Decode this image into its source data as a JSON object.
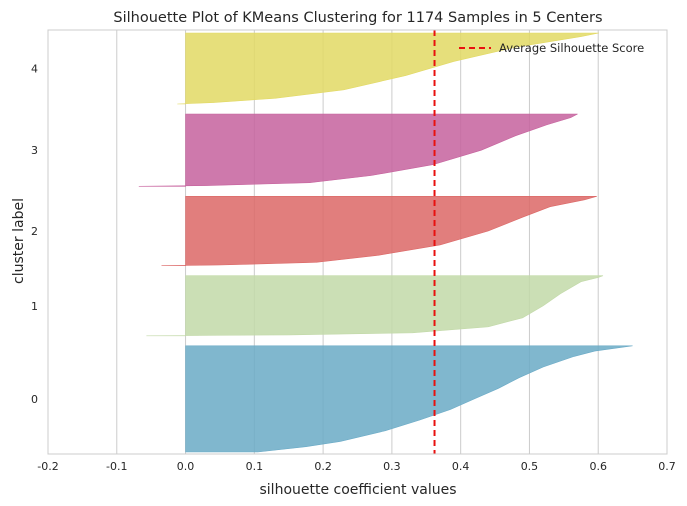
{
  "chart_data": {
    "type": "area",
    "title": "Silhouette Plot of KMeans Clustering for 1174 Samples in 5 Centers",
    "xlabel": "silhouette coefficient values",
    "ylabel": "cluster label",
    "xlim": [
      -0.2,
      0.7
    ],
    "xticks": [
      "-0.2",
      "-0.1",
      "0.0",
      "0.1",
      "0.2",
      "0.3",
      "0.4",
      "0.5",
      "0.6",
      "0.7"
    ],
    "yticks": [
      "0",
      "1",
      "2",
      "3",
      "4"
    ],
    "grid": true,
    "average_score": 0.362,
    "legend": {
      "label": "Average Silhouette Score",
      "placement": "top-right"
    },
    "clusters": [
      {
        "label": "0",
        "color": "#6aaac6",
        "size": 329,
        "profile": [
          [
            0,
            0.65
          ],
          [
            0.05,
            0.595
          ],
          [
            0.1,
            0.565
          ],
          [
            0.2,
            0.52
          ],
          [
            0.3,
            0.485
          ],
          [
            0.4,
            0.455
          ],
          [
            0.5,
            0.42
          ],
          [
            0.6,
            0.385
          ],
          [
            0.7,
            0.34
          ],
          [
            0.8,
            0.29
          ],
          [
            0.9,
            0.225
          ],
          [
            0.95,
            0.175
          ],
          [
            1,
            0.105
          ]
        ]
      },
      {
        "label": "1",
        "color": "#c2d9a8",
        "size": 186,
        "profile": [
          [
            0,
            0.607
          ],
          [
            0.03,
            0.6
          ],
          [
            0.1,
            0.575
          ],
          [
            0.3,
            0.545
          ],
          [
            0.5,
            0.52
          ],
          [
            0.7,
            0.49
          ],
          [
            0.85,
            0.44
          ],
          [
            0.95,
            0.33
          ],
          [
            0.985,
            0.15
          ],
          [
            0.995,
            0.02
          ],
          [
            1,
            -0.057
          ]
        ]
      },
      {
        "label": "2",
        "color": "#dc6766",
        "size": 215,
        "profile": [
          [
            0,
            0.598
          ],
          [
            0.05,
            0.58
          ],
          [
            0.15,
            0.53
          ],
          [
            0.3,
            0.49
          ],
          [
            0.5,
            0.44
          ],
          [
            0.7,
            0.37
          ],
          [
            0.85,
            0.28
          ],
          [
            0.95,
            0.19
          ],
          [
            0.99,
            0.05
          ],
          [
            1,
            -0.035
          ]
        ]
      },
      {
        "label": "3",
        "color": "#c6629d",
        "size": 224,
        "profile": [
          [
            0,
            0.57
          ],
          [
            0.05,
            0.56
          ],
          [
            0.15,
            0.525
          ],
          [
            0.3,
            0.48
          ],
          [
            0.5,
            0.43
          ],
          [
            0.7,
            0.36
          ],
          [
            0.85,
            0.27
          ],
          [
            0.95,
            0.18
          ],
          [
            0.99,
            0.03
          ],
          [
            1,
            -0.068
          ]
        ]
      },
      {
        "label": "4",
        "color": "#e2d964",
        "size": 220,
        "profile": [
          [
            0,
            0.601
          ],
          [
            0.05,
            0.575
          ],
          [
            0.2,
            0.48
          ],
          [
            0.4,
            0.39
          ],
          [
            0.6,
            0.32
          ],
          [
            0.8,
            0.23
          ],
          [
            0.92,
            0.13
          ],
          [
            0.98,
            0.04
          ],
          [
            1,
            -0.012
          ]
        ]
      }
    ]
  }
}
